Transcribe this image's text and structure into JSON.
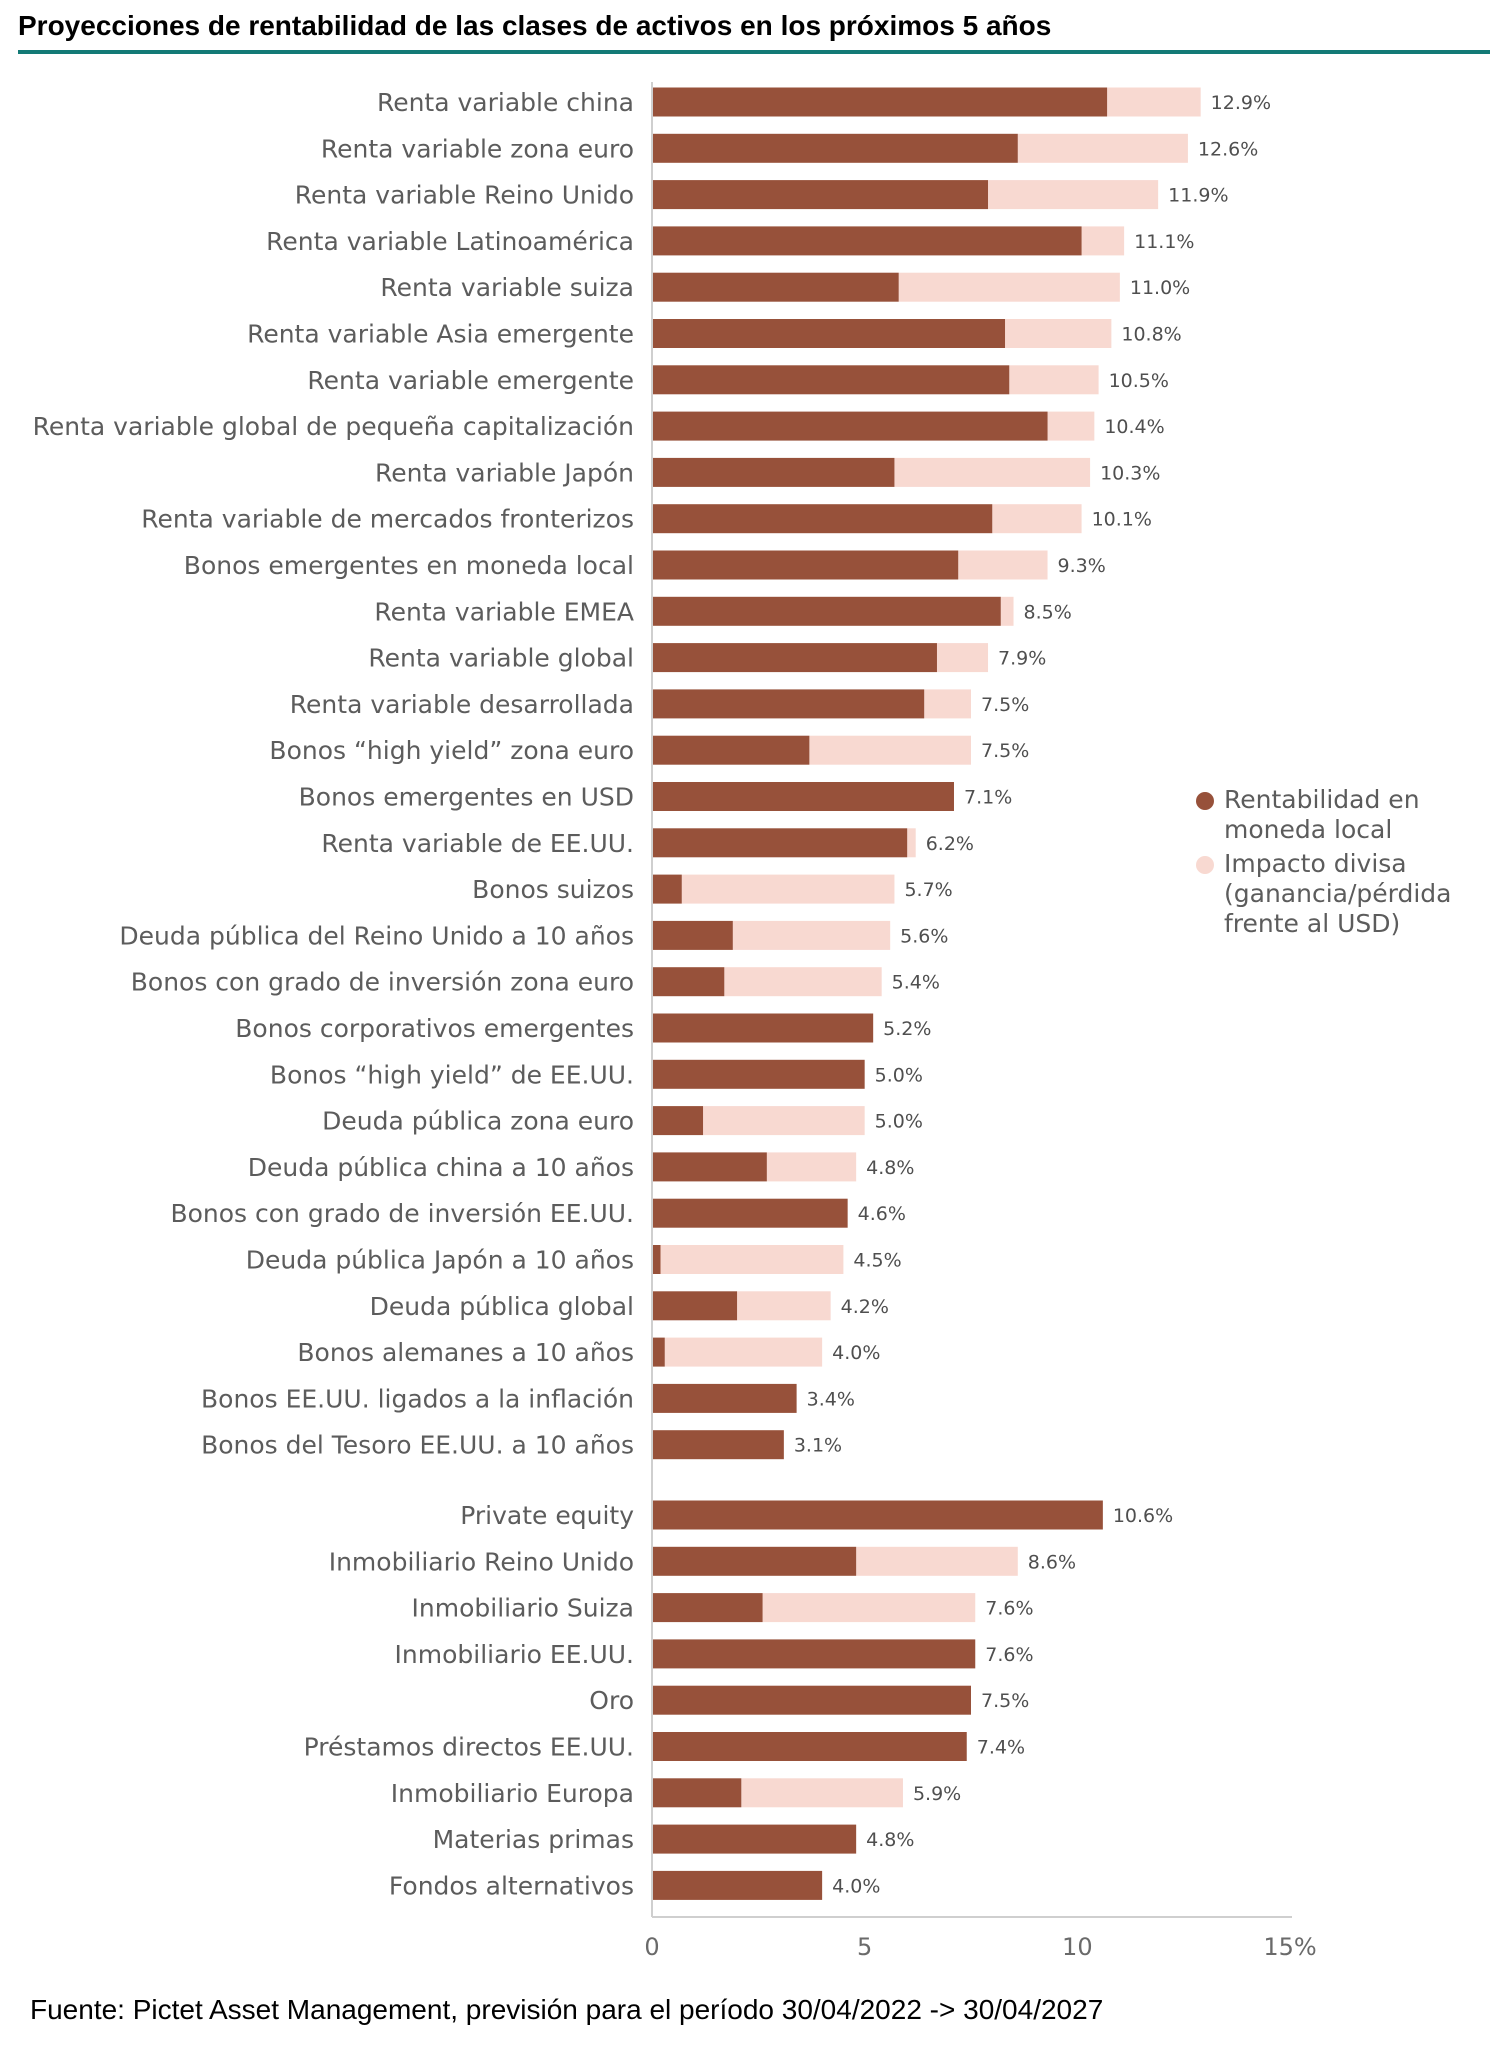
{
  "title": "Proyecciones de rentabilidad de las clases de activos en los próximos 5 años",
  "source": "Fuente: Pictet Asset Management, previsión para el período 30/04/2022 -> 30/04/2027",
  "legend": [
    {
      "label": "Rentabilidad en moneda local",
      "color": "#97513a"
    },
    {
      "label": "Impacto divisa (ganancia/pérdida frente al USD)",
      "color": "#f8d9d1"
    }
  ],
  "chart_data": {
    "type": "bar",
    "orientation": "horizontal",
    "stacked": true,
    "title": "Proyecciones de rentabilidad de las clases de activos en los próximos 5 años",
    "xlabel": "",
    "ylabel": "",
    "xlim": [
      0,
      15
    ],
    "x_ticks": [
      "0",
      "5",
      "10",
      "15%"
    ],
    "legend_position": "right",
    "grid": false,
    "groups": [
      {
        "categories": [
          "Renta variable china",
          "Renta variable zona euro",
          "Renta variable Reino Unido",
          "Renta variable Latinoamérica",
          "Renta variable suiza",
          "Renta variable Asia emergente",
          "Renta variable emergente",
          "Renta variable global de pequeña capitalización",
          "Renta variable Japón",
          "Renta variable de mercados fronterizos",
          "Bonos emergentes en moneda local",
          "Renta variable EMEA",
          "Renta variable global",
          "Renta variable desarrollada",
          "Bonos “high yield” zona euro",
          "Bonos emergentes en USD",
          "Renta variable de EE.UU.",
          "Bonos suizos",
          "Deuda pública del Reino Unido a 10 años",
          "Bonos con grado de inversión zona euro",
          "Bonos corporativos emergentes",
          "Bonos “high yield” de EE.UU.",
          "Deuda pública zona euro",
          "Deuda pública china a 10 años",
          "Bonos con grado de inversión EE.UU.",
          "Deuda pública Japón a 10 años",
          "Deuda pública global",
          "Bonos alemanes a 10 años",
          "Bonos EE.UU. ligados a la inflación",
          "Bonos del Tesoro EE.UU. a 10 años"
        ],
        "local": [
          10.7,
          8.6,
          7.9,
          10.1,
          5.8,
          8.3,
          8.4,
          9.3,
          5.7,
          8.0,
          7.2,
          8.2,
          6.7,
          6.4,
          3.7,
          7.1,
          6.0,
          0.7,
          1.9,
          1.7,
          5.2,
          5.0,
          1.2,
          2.7,
          4.6,
          0.2,
          2.0,
          0.3,
          3.4,
          3.1
        ],
        "total": [
          12.9,
          12.6,
          11.9,
          11.1,
          11.0,
          10.8,
          10.5,
          10.4,
          10.3,
          10.1,
          9.3,
          8.5,
          7.9,
          7.5,
          7.5,
          7.1,
          6.2,
          5.7,
          5.6,
          5.4,
          5.2,
          5.0,
          5.0,
          4.8,
          4.6,
          4.5,
          4.2,
          4.0,
          3.4,
          3.1
        ],
        "labels": [
          "12.9%",
          "12.6%",
          "11.9%",
          "11.1%",
          "11.0%",
          "10.8%",
          "10.5%",
          "10.4%",
          "10.3%",
          "10.1%",
          "9.3%",
          "8.5%",
          "7.9%",
          "7.5%",
          "7.5%",
          "7.1%",
          "6.2%",
          "5.7%",
          "5.6%",
          "5.4%",
          "5.2%",
          "5.0%",
          "5.0%",
          "4.8%",
          "4.6%",
          "4.5%",
          "4.2%",
          "4.0%",
          "3.4%",
          "3.1%"
        ]
      },
      {
        "categories": [
          "Private equity",
          "Inmobiliario Reino Unido",
          "Inmobiliario Suiza",
          "Inmobiliario EE.UU.",
          "Oro",
          "Préstamos directos EE.UU.",
          "Inmobiliario Europa",
          "Materias primas",
          "Fondos alternativos"
        ],
        "local": [
          10.6,
          4.8,
          2.6,
          7.6,
          7.5,
          7.4,
          2.1,
          4.8,
          4.0
        ],
        "total": [
          10.6,
          8.6,
          7.6,
          7.6,
          7.5,
          7.4,
          5.9,
          4.8,
          4.0
        ],
        "labels": [
          "10.6%",
          "8.6%",
          "7.6%",
          "7.6%",
          "7.5%",
          "7.4%",
          "5.9%",
          "4.8%",
          "4.0%"
        ]
      }
    ]
  }
}
